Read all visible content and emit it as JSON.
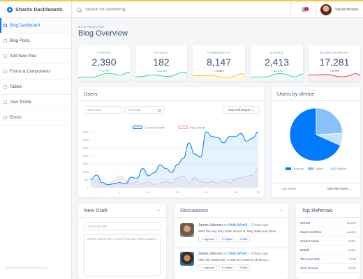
{
  "brand": {
    "name": "Shards Dashboards"
  },
  "sidebar": {
    "items": [
      {
        "label": "Blog Dashboard",
        "active": true
      },
      {
        "label": "Blog Posts"
      },
      {
        "label": "Add New Post"
      },
      {
        "label": "Forms & Components"
      },
      {
        "label": "Tables"
      },
      {
        "label": "User Profile"
      },
      {
        "label": "Errors"
      }
    ]
  },
  "header": {
    "search_placeholder": "Search for something...",
    "notification_count": "2",
    "user_name": "Sierra Brooks"
  },
  "page": {
    "subtitle": "DASHBOARD",
    "title": "Blog Overview"
  },
  "stats": [
    {
      "label": "POSTS",
      "value": "2,390",
      "change": "4.7%",
      "direction": "up"
    },
    {
      "label": "PAGES",
      "value": "182",
      "change": "12.4%",
      "direction": "up"
    },
    {
      "label": "COMMENTS",
      "value": "8,147",
      "change": "3.8%",
      "direction": "down"
    },
    {
      "label": "USERS",
      "value": "2,413",
      "change": "12.4%",
      "direction": "up"
    },
    {
      "label": "SUBSCRIBERS",
      "value": "17,281",
      "change": "2.4%",
      "direction": "down"
    }
  ],
  "colors": {
    "accent": "#007bff",
    "success": "#17c671",
    "danger": "#c4183c",
    "tablet": "#86c1fb",
    "mobile": "#c5e1fd",
    "past": "#f0a3bb"
  },
  "users_card": {
    "title": "Users",
    "start_placeholder": "Start Date",
    "end_placeholder": "End Date",
    "report_label": "View Full Report →"
  },
  "device_card": {
    "title": "Users by device",
    "period_label": "Last Week",
    "report_label": "View full report →"
  },
  "new_draft": {
    "title": "New Draft",
    "title_placeholder": "Your Post Title",
    "body_placeholder": "Words can be like x-rays if you use them properly..."
  },
  "discussions": {
    "title": "Discussions",
    "items": [
      {
        "author": "James Johnson",
        "on": "on",
        "post": "Hello World!",
        "time": "– 3 days ago",
        "text": "Well, the way they make shows is, they make one show...",
        "actions": [
          "✓ Approve",
          "✕ Reject",
          "✎ Edit"
        ]
      },
      {
        "author": "James Johnson",
        "on": "on",
        "post": "Hello World!",
        "time": "– 4 days ago",
        "text": "After the avalanche, it took us a week to climb out...",
        "actions": [
          "✓ Approve",
          "✕ Reject",
          "✎ Edit"
        ]
      }
    ]
  },
  "referrals": {
    "title": "Top Referrals",
    "rows": [
      {
        "name": "GitHub",
        "value": "19,291"
      },
      {
        "name": "Stack Overflow",
        "value": "11,201"
      },
      {
        "name": "Hacker News",
        "value": "9,291"
      },
      {
        "name": "Reddit",
        "value": "8,281"
      },
      {
        "name": "The Next Web",
        "value": "7,128"
      },
      {
        "name": "Tech Crunch",
        "value": "6,218"
      }
    ]
  },
  "chart_data": [
    {
      "type": "line",
      "title": "Users",
      "x": [
        1,
        2,
        3,
        4,
        5,
        6,
        7,
        8,
        9,
        10,
        11,
        12,
        13,
        14,
        15,
        16,
        17,
        18,
        19,
        20,
        21,
        22,
        23,
        24,
        25,
        26,
        27,
        28,
        29,
        30
      ],
      "x_tick_labels": [
        "1",
        "",
        "",
        "",
        "",
        "6",
        "",
        "",
        "",
        "",
        "11",
        "",
        "",
        "",
        "",
        "16",
        "",
        "",
        "",
        "",
        "21",
        "",
        "",
        "",
        "",
        "26",
        "",
        "",
        "",
        "30"
      ],
      "ylim": [
        0,
        3500
      ],
      "y_ticks": [
        0,
        500,
        1000,
        1500,
        2000,
        2500,
        3000,
        3500
      ],
      "series": [
        {
          "name": "Current Month",
          "color": "#007bff",
          "values": [
            500,
            800,
            320,
            180,
            240,
            320,
            230,
            650,
            590,
            1200,
            750,
            940,
            1420,
            1200,
            960,
            1450,
            1820,
            2800,
            2102,
            1920,
            3920,
            3202,
            3140,
            2800,
            3200,
            3200,
            3400,
            2910,
            3100,
            4250
          ]
        },
        {
          "name": "Past Month",
          "color": "#f0a3bb",
          "values": [
            380,
            430,
            120,
            230,
            410,
            740,
            472,
            219,
            391,
            229,
            400,
            203,
            301,
            380,
            291,
            620,
            700,
            300,
            630,
            402,
            320,
            380,
            289,
            410,
            300,
            530,
            630,
            720,
            780,
            1200
          ]
        }
      ]
    },
    {
      "type": "pie",
      "title": "Users by device",
      "categories": [
        "Desktop",
        "Tablet",
        "Mobile"
      ],
      "values": [
        68.3,
        24.2,
        7.5
      ],
      "legend": "bottom"
    }
  ]
}
